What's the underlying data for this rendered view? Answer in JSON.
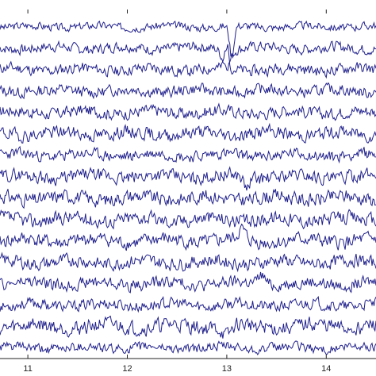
{
  "chart_data": {
    "type": "line",
    "title": "",
    "xlabel": "",
    "ylabel": "",
    "xlim": [
      10.72,
      14.5
    ],
    "x_ticks": [
      11,
      12,
      13,
      14
    ],
    "x_tick_labels": [
      "11",
      "12",
      "13",
      "14"
    ],
    "grid": false,
    "line_color": "#1f1f8c",
    "channel_count": 16,
    "sample_step": 0.01,
    "series": [
      {
        "baseline": 16,
        "amplitude": 0.9,
        "seed": 3,
        "events": [
          {
            "x": 13.05,
            "amp": -8.0,
            "width": 0.03
          }
        ]
      },
      {
        "baseline": 15,
        "amplitude": 1.2,
        "seed": 7,
        "events": [
          {
            "x": 13.0,
            "amp": -4.0,
            "width": 0.06
          }
        ]
      },
      {
        "baseline": 14,
        "amplitude": 1.3,
        "seed": 11,
        "events": [
          {
            "x": 13.0,
            "amp": 6.0,
            "width": 0.03
          }
        ]
      },
      {
        "baseline": 13,
        "amplitude": 1.3,
        "seed": 13,
        "events": []
      },
      {
        "baseline": 12,
        "amplitude": 1.4,
        "seed": 17,
        "events": []
      },
      {
        "baseline": 11,
        "amplitude": 1.5,
        "seed": 19,
        "events": []
      },
      {
        "baseline": 10,
        "amplitude": 1.3,
        "seed": 23,
        "events": []
      },
      {
        "baseline": 9,
        "amplitude": 1.5,
        "seed": 29,
        "events": [
          {
            "x": 13.2,
            "amp": -3.0,
            "width": 0.04
          }
        ]
      },
      {
        "baseline": 8,
        "amplitude": 1.6,
        "seed": 31,
        "events": []
      },
      {
        "baseline": 7,
        "amplitude": 1.6,
        "seed": 37,
        "events": []
      },
      {
        "baseline": 6,
        "amplitude": 1.6,
        "seed": 41,
        "events": [
          {
            "x": 13.15,
            "amp": 2.5,
            "width": 0.05
          }
        ]
      },
      {
        "baseline": 5,
        "amplitude": 1.5,
        "seed": 43,
        "events": []
      },
      {
        "baseline": 4,
        "amplitude": 1.4,
        "seed": 47,
        "events": [
          {
            "x": 13.35,
            "amp": 2.5,
            "width": 0.05
          }
        ]
      },
      {
        "baseline": 3,
        "amplitude": 1.3,
        "seed": 53,
        "events": []
      },
      {
        "baseline": 2,
        "amplitude": 1.7,
        "seed": 59,
        "events": [
          {
            "x": 13.0,
            "amp": -2.5,
            "width": 0.06
          }
        ]
      },
      {
        "baseline": 1,
        "amplitude": 1.1,
        "seed": 61,
        "events": []
      }
    ]
  }
}
